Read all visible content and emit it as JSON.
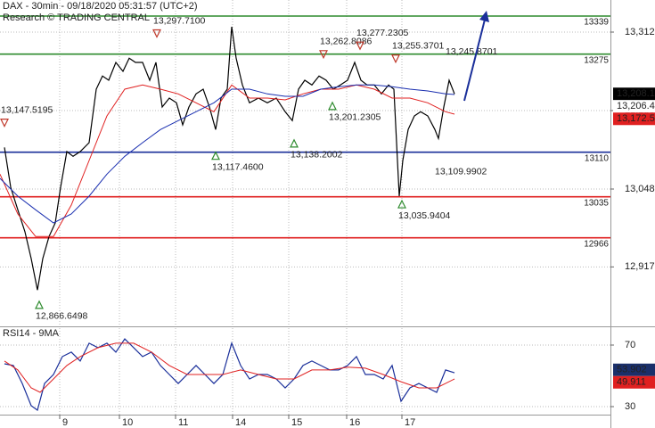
{
  "chart_data": [
    {
      "type": "line",
      "title": "DAX - 30min - 09/18/2020 05:31:57 (UTC+2)",
      "subtitle": "Research © TRADING CENTRAL",
      "xlim": [
        0,
        685
      ],
      "ylim": [
        12818.5,
        13366
      ],
      "yticks": [
        {
          "value": 13312,
          "label": "13,312"
        },
        {
          "value": 13180,
          "label": "13,180"
        },
        {
          "value": 13048,
          "label": "13,048"
        },
        {
          "value": 12917,
          "label": "12,917"
        }
      ],
      "grid": true,
      "series": [
        {
          "color": "#000000",
          "x": [
            5,
            12,
            20,
            28,
            35,
            42,
            48,
            55,
            62,
            68,
            75,
            82,
            90,
            100,
            108,
            115,
            122,
            130,
            138,
            145,
            152,
            160,
            168,
            175,
            182,
            190,
            198,
            205,
            212,
            220,
            228,
            235,
            242,
            248,
            255,
            260,
            265,
            272,
            280,
            290,
            300,
            310,
            320,
            328,
            335,
            342,
            350,
            358,
            366,
            374,
            382,
            390,
            398,
            405,
            412,
            420,
            428,
            436,
            442,
            448,
            452,
            458,
            465,
            472,
            480,
            488,
            492,
            498,
            504,
            510
          ],
          "values": [
            13118,
            13051,
            13013,
            12976,
            12931,
            12878,
            12931,
            12968,
            12991,
            13051,
            13111,
            13103,
            13111,
            13126,
            13216,
            13238,
            13231,
            13261,
            13246,
            13268,
            13261,
            13261,
            13231,
            13261,
            13186,
            13201,
            13193,
            13156,
            13186,
            13208,
            13216,
            13186,
            13148,
            13201,
            13216,
            13321,
            13268,
            13223,
            13193,
            13201,
            13193,
            13201,
            13178,
            13163,
            13216,
            13231,
            13223,
            13238,
            13231,
            13216,
            13223,
            13231,
            13261,
            13231,
            13223,
            13223,
            13208,
            13223,
            13216,
            13036,
            13096,
            13148,
            13171,
            13178,
            13171,
            13148,
            13133,
            13186,
            13231,
            13208
          ]
        },
        {
          "color": "#e02020",
          "x": [
            0,
            20,
            40,
            60,
            80,
            100,
            120,
            140,
            160,
            180,
            200,
            220,
            240,
            260,
            280,
            300,
            320,
            340,
            360,
            380,
            400,
            420,
            440,
            460,
            480,
            500,
            510
          ],
          "values": [
            13073,
            13006,
            12968,
            12968,
            13021,
            13096,
            13171,
            13216,
            13223,
            13216,
            13208,
            13193,
            13178,
            13223,
            13201,
            13201,
            13198,
            13208,
            13216,
            13216,
            13223,
            13216,
            13201,
            13201,
            13193,
            13178,
            13174
          ]
        },
        {
          "color": "#1a2fb0",
          "x": [
            0,
            20,
            40,
            60,
            80,
            100,
            120,
            140,
            160,
            180,
            200,
            220,
            240,
            260,
            280,
            300,
            320,
            340,
            360,
            380,
            400,
            420,
            440,
            460,
            480,
            500,
            510
          ],
          "values": [
            13066,
            13036,
            13013,
            12991,
            13006,
            13036,
            13073,
            13103,
            13126,
            13148,
            13163,
            13178,
            13193,
            13216,
            13216,
            13208,
            13204,
            13204,
            13216,
            13220,
            13223,
            13223,
            13220,
            13216,
            13213,
            13208,
            13207
          ]
        }
      ],
      "levels": [
        {
          "value": 13339,
          "color": "#2e8b2e"
        },
        {
          "value": 13275,
          "color": "#2e8b2e"
        },
        {
          "value": 13110,
          "color": "#1a2f9a"
        },
        {
          "value": 13035,
          "color": "#e02020"
        },
        {
          "value": 12966,
          "color": "#e02020"
        }
      ],
      "annotations": [
        {
          "x": 5,
          "value": 13147.5195,
          "label": "13,147.5195",
          "dir": "down"
        },
        {
          "x": 176,
          "value": 13297.71,
          "label": "13,297.7100",
          "dir": "down"
        },
        {
          "x": 242,
          "value": 13117.46,
          "label": "13,117.4600",
          "dir": "up"
        },
        {
          "x": 330,
          "value": 13138.2002,
          "label": "13,138.2002",
          "dir": "up"
        },
        {
          "x": 363,
          "value": 13262.8086,
          "label": "13,262.8086",
          "dir": "down"
        },
        {
          "x": 373,
          "value": 13201.2305,
          "label": "13,201.2305",
          "dir": "up"
        },
        {
          "x": 404,
          "value": 13277.2305,
          "label": "13,277.2305",
          "dir": "down"
        },
        {
          "x": 444,
          "value": 13255.3701,
          "label": "13,255.3701",
          "dir": "down"
        },
        {
          "x": 504,
          "value": 13245.8701,
          "label": "13,245.8701",
          "dir": "down",
          "marker": false
        },
        {
          "x": 492,
          "value": 13109.9902,
          "label": "13,109.9902",
          "dir": "up",
          "marker": false
        },
        {
          "x": 451,
          "value": 13035.9404,
          "label": "13,035.9404",
          "dir": "up"
        },
        {
          "x": 44,
          "value": 12866.6498,
          "label": "12,866.6498",
          "dir": "up"
        }
      ],
      "tags": [
        {
          "value": 13208.1,
          "label": "13,208.1",
          "color": "#000000"
        },
        {
          "value": 13206.4,
          "label": "13,206.4",
          "color": "#1a2fb0"
        },
        {
          "value": 13172.5,
          "label": "13,172.5",
          "color": "#e02020"
        }
      ]
    },
    {
      "type": "line",
      "title": "RSI14 - 9MA",
      "xlim": [
        0,
        685
      ],
      "ylim": [
        24.8,
        81
      ],
      "yticks": [
        70,
        30
      ],
      "xticks": [
        {
          "value": 67,
          "label": "9"
        },
        {
          "value": 134,
          "label": "10"
        },
        {
          "value": 197,
          "label": "11"
        },
        {
          "value": 261,
          "label": "14"
        },
        {
          "value": 324,
          "label": "15"
        },
        {
          "value": 389,
          "label": "16"
        },
        {
          "value": 451,
          "label": "17"
        }
      ],
      "grid": true,
      "series": [
        {
          "color": "#1a2f9a",
          "x": [
            5,
            15,
            25,
            35,
            42,
            50,
            60,
            70,
            80,
            90,
            100,
            110,
            120,
            130,
            140,
            150,
            160,
            170,
            180,
            190,
            200,
            210,
            220,
            230,
            240,
            250,
            260,
            270,
            280,
            290,
            300,
            310,
            320,
            330,
            340,
            350,
            360,
            370,
            380,
            390,
            400,
            410,
            420,
            430,
            440,
            450,
            460,
            470,
            480,
            490,
            500,
            510
          ],
          "values": [
            57.8,
            56.7,
            45,
            30.6,
            27.7,
            45,
            50.9,
            62.5,
            65.4,
            59.6,
            71.2,
            68.3,
            71.2,
            65.4,
            74,
            68.3,
            62.5,
            65.4,
            56.7,
            50.9,
            45,
            50.9,
            56.7,
            50.9,
            45,
            50.9,
            71.2,
            56.7,
            48,
            50.9,
            50.9,
            48,
            42.2,
            48,
            56.7,
            59.6,
            56.7,
            53.8,
            53.8,
            56.7,
            62.5,
            50.9,
            50.9,
            48,
            56.7,
            33.5,
            42.2,
            45,
            42.2,
            39.3,
            53.8,
            52
          ]
        },
        {
          "color": "#e02020",
          "x": [
            5,
            20,
            35,
            45,
            60,
            75,
            90,
            110,
            130,
            150,
            170,
            190,
            210,
            230,
            250,
            270,
            290,
            310,
            330,
            350,
            370,
            390,
            410,
            430,
            450,
            470,
            490,
            510
          ],
          "values": [
            59.6,
            53.8,
            42.2,
            39.3,
            48,
            56.7,
            62.5,
            68.3,
            71.2,
            71.2,
            65.4,
            56.7,
            50.9,
            50.9,
            50.9,
            53.8,
            50.9,
            48,
            48,
            53.8,
            53.8,
            55.6,
            55,
            50.9,
            46.2,
            42.2,
            42.2,
            48
          ]
        }
      ],
      "tags": [
        {
          "value": 53.902,
          "label": "53.902",
          "color": "#1a2f6a"
        },
        {
          "value": 49.911,
          "label": "49.911",
          "color": "#e02020"
        }
      ]
    }
  ]
}
